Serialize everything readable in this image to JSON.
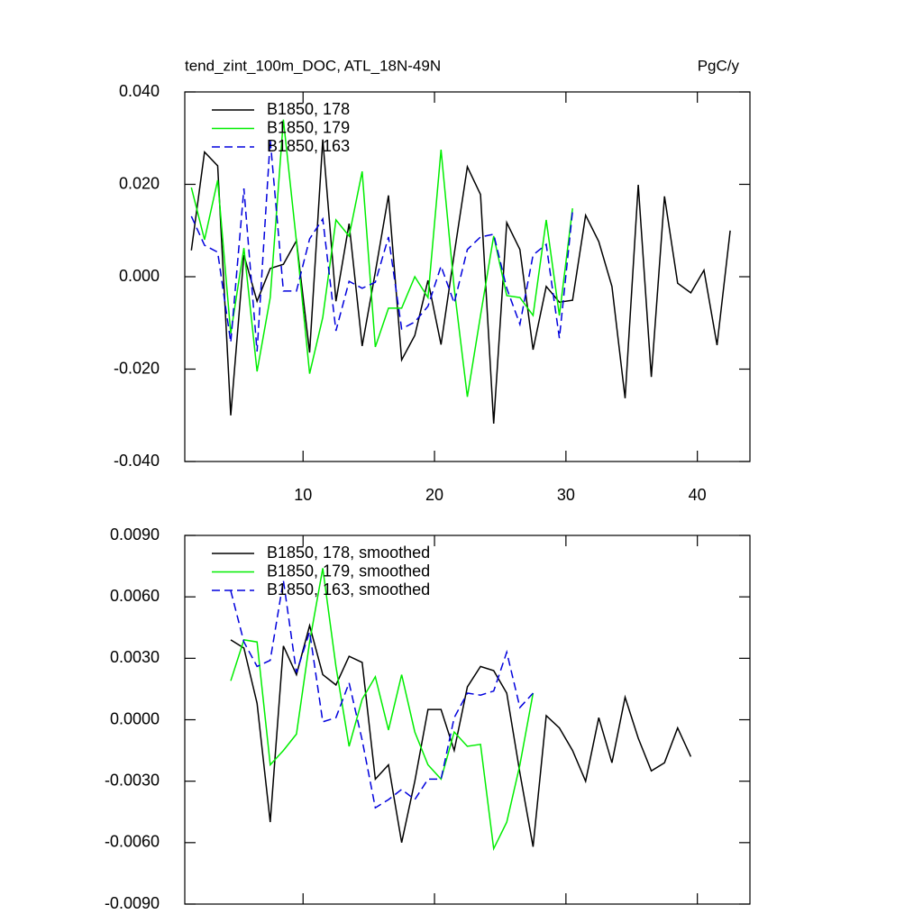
{
  "chart_data": [
    {
      "type": "line",
      "title": "tend_zint_100m_DOC, ATL_18N-49N",
      "units": "PgC/y",
      "xlim": [
        1,
        44
      ],
      "xticks": [
        10,
        20,
        30,
        40
      ],
      "xtick_labels": true,
      "ylim": [
        -0.04,
        0.04
      ],
      "yticks": [
        {
          "value": -0.04,
          "label": "-0.040"
        },
        {
          "value": -0.02,
          "label": "-0.020"
        },
        {
          "value": 0,
          "label": "0.000"
        },
        {
          "value": 0.02,
          "label": "0.020"
        },
        {
          "value": 0.04,
          "label": "0.040"
        }
      ],
      "legend": "upper left",
      "series": [
        {
          "name": "B1850, 178",
          "color": "#000000",
          "line_style": "solid",
          "x": [
            1.5,
            2.5,
            3.5,
            4.5,
            5.5,
            6.5,
            7.5,
            8.5,
            9.5,
            10.5,
            11.5,
            12.5,
            13.5,
            14.5,
            15.5,
            16.5,
            17.5,
            18.5,
            19.5,
            20.5,
            21.5,
            22.5,
            23.5,
            24.5,
            25.5,
            26.5,
            27.5,
            28.5,
            29.5,
            30.5,
            31.5,
            32.5,
            33.5,
            34.5,
            35.5,
            36.5,
            37.5,
            38.5,
            39.5,
            40.5,
            41.5,
            42.5
          ],
          "values": [
            0.0057,
            0.027,
            0.024,
            -0.03,
            0.0047,
            -0.0053,
            0.0018,
            0.0027,
            0.0078,
            -0.0164,
            0.0297,
            -0.0053,
            0.0115,
            -0.015,
            0.001,
            0.0176,
            -0.018,
            -0.0127,
            -0.0008,
            -0.0147,
            0.0049,
            0.0238,
            0.0178,
            -0.0318,
            0.0117,
            0.0059,
            -0.0158,
            -0.0021,
            -0.0055,
            -0.0051,
            0.0133,
            0.0076,
            -0.0021,
            -0.0263,
            0.0199,
            -0.0217,
            0.0174,
            -0.0014,
            -0.0035,
            0.0014,
            -0.0148,
            0.01
          ]
        },
        {
          "name": "B1850, 179",
          "color": "#00ee00",
          "line_style": "solid",
          "x": [
            1.5,
            2.5,
            3.5,
            4.5,
            5.5,
            6.5,
            7.5,
            8.5,
            9.5,
            10.5,
            11.5,
            12.5,
            13.5,
            14.5,
            15.5,
            16.5,
            17.5,
            18.5,
            19.5,
            20.5,
            21.5,
            22.5,
            23.5,
            24.5,
            25.5,
            26.5,
            27.5,
            28.5,
            29.5,
            30.5
          ],
          "values": [
            0.0193,
            0.008,
            0.0209,
            -0.0123,
            0.0062,
            -0.0205,
            -0.0045,
            0.034,
            0.0076,
            -0.021,
            -0.0088,
            0.0123,
            0.0088,
            0.0228,
            -0.0152,
            -0.0068,
            -0.0068,
            0.0,
            -0.0045,
            0.0275,
            -0.0025,
            -0.026,
            -0.0084,
            0.0088,
            -0.0041,
            -0.0045,
            -0.0084,
            0.0123,
            -0.0084,
            0.0148
          ]
        },
        {
          "name": "B1850, 163",
          "color": "#0000dd",
          "line_style": "dashed",
          "x": [
            1.5,
            2.5,
            3.5,
            4.5,
            5.5,
            6.5,
            7.5,
            8.5,
            9.5,
            10.5,
            11.5,
            12.5,
            13.5,
            14.5,
            15.5,
            16.5,
            17.5,
            18.5,
            19.5,
            20.5,
            21.5,
            22.5,
            23.5,
            24.5,
            25.5,
            26.5,
            27.5,
            28.5,
            29.5,
            30.5
          ],
          "values": [
            0.0131,
            0.0068,
            0.0053,
            -0.0142,
            0.0191,
            -0.0162,
            0.0297,
            -0.0031,
            -0.0031,
            0.0082,
            0.0125,
            -0.0117,
            -0.001,
            -0.0025,
            -0.0012,
            0.0086,
            -0.0113,
            -0.0098,
            -0.0064,
            0.0023,
            -0.0057,
            0.0059,
            0.0086,
            0.0092,
            -0.0025,
            -0.0103,
            0.0047,
            0.007,
            -0.0133,
            0.0142
          ]
        }
      ]
    },
    {
      "type": "line",
      "xlim": [
        1,
        44
      ],
      "xticks": [
        10,
        20,
        30,
        40
      ],
      "xtick_labels": false,
      "ylim": [
        -0.009,
        0.009
      ],
      "yticks": [
        {
          "value": -0.009,
          "label": "-0.0090"
        },
        {
          "value": -0.006,
          "label": "-0.0060"
        },
        {
          "value": -0.003,
          "label": "-0.0030"
        },
        {
          "value": 0,
          "label": "0.0000"
        },
        {
          "value": 0.003,
          "label": "0.0030"
        },
        {
          "value": 0.006,
          "label": "0.0060"
        },
        {
          "value": 0.009,
          "label": "0.0090"
        }
      ],
      "legend": "upper left",
      "series": [
        {
          "name": "B1850, 178, smoothed",
          "color": "#000000",
          "line_style": "solid",
          "x": [
            4.5,
            5.5,
            6.5,
            7.5,
            8.5,
            9.5,
            10.5,
            11.5,
            12.5,
            13.5,
            14.5,
            15.5,
            16.5,
            17.5,
            18.5,
            19.5,
            20.5,
            21.5,
            22.5,
            23.5,
            24.5,
            25.5,
            26.5,
            27.5,
            28.5,
            29.5,
            30.5,
            31.5,
            32.5,
            33.5,
            34.5,
            35.5,
            36.5,
            37.5,
            38.5,
            39.5
          ],
          "values": [
            0.0039,
            0.0035,
            0.0008,
            -0.005,
            0.0036,
            0.0022,
            0.0046,
            0.0022,
            0.0017,
            0.0031,
            0.0028,
            -0.0029,
            -0.0022,
            -0.006,
            -0.003,
            0.0005,
            0.0005,
            -0.0015,
            0.0016,
            0.0026,
            0.0024,
            0.0013,
            -0.0026,
            -0.0062,
            0.0002,
            -0.0004,
            -0.0015,
            -0.003,
            0.0001,
            -0.0021,
            0.0011,
            -0.0009,
            -0.0025,
            -0.0021,
            -0.0004,
            -0.0018
          ]
        },
        {
          "name": "B1850, 179, smoothed",
          "color": "#00ee00",
          "line_style": "solid",
          "x": [
            4.5,
            5.5,
            6.5,
            7.5,
            8.5,
            9.5,
            10.5,
            11.5,
            12.5,
            13.5,
            14.5,
            15.5,
            16.5,
            17.5,
            18.5,
            19.5,
            20.5,
            21.5,
            22.5,
            23.5,
            24.5,
            25.5,
            26.5,
            27.5
          ],
          "values": [
            0.0019,
            0.0039,
            0.0038,
            -0.0022,
            -0.0015,
            -0.0007,
            0.0038,
            0.0074,
            0.0026,
            -0.0013,
            0.001,
            0.0021,
            -0.0005,
            0.0022,
            -0.0006,
            -0.0022,
            -0.0029,
            -0.0006,
            -0.0013,
            -0.0012,
            -0.0063,
            -0.005,
            -0.0022,
            0.0013
          ]
        },
        {
          "name": "B1850, 163, smoothed",
          "color": "#0000dd",
          "line_style": "dashed",
          "x": [
            4.5,
            5.5,
            6.5,
            7.5,
            8.5,
            9.5,
            10.5,
            11.5,
            12.5,
            13.5,
            14.5,
            15.5,
            16.5,
            17.5,
            18.5,
            19.5,
            20.5,
            21.5,
            22.5,
            23.5,
            24.5,
            25.5,
            26.5,
            27.5
          ],
          "values": [
            0.0063,
            0.0038,
            0.0026,
            0.0029,
            0.0068,
            0.0023,
            0.0043,
            -0.0001,
            0.0001,
            0.0018,
            -0.001,
            -0.0043,
            -0.0039,
            -0.0034,
            -0.0039,
            -0.0029,
            -0.0029,
            0.0001,
            0.0013,
            0.0012,
            0.0014,
            0.0033,
            0.0006,
            0.0013
          ]
        }
      ]
    }
  ]
}
